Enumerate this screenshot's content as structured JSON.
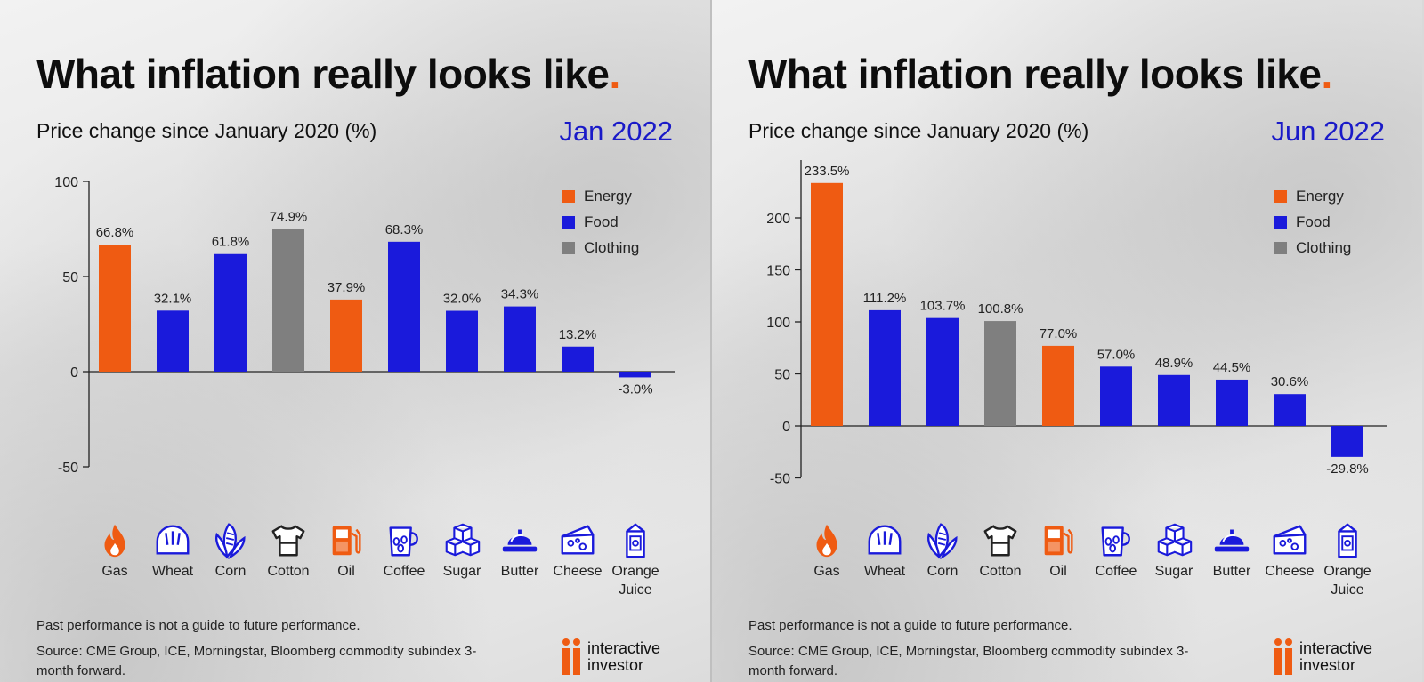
{
  "colors": {
    "energy": "#ef5b12",
    "food": "#1a1adb",
    "clothing": "#7f7f7f",
    "accent": "#ef5b12",
    "period": "#1a1ac8"
  },
  "panels": [
    {
      "title": "What inflation really looks like",
      "title_dot": ".",
      "subtitle": "Price change since January 2020 (%)",
      "period": "Jan 2022",
      "legend": [
        {
          "label": "Energy",
          "color": "#ef5b12"
        },
        {
          "label": "Food",
          "color": "#1a1adb"
        },
        {
          "label": "Clothing",
          "color": "#7f7f7f"
        }
      ],
      "commodities": [
        {
          "label": "Gas",
          "icon": "flame-icon"
        },
        {
          "label": "Wheat",
          "icon": "bread-icon"
        },
        {
          "label": "Corn",
          "icon": "corn-icon"
        },
        {
          "label": "Cotton",
          "icon": "tshirt-icon"
        },
        {
          "label": "Oil",
          "icon": "fuel-pump-icon"
        },
        {
          "label": "Coffee",
          "icon": "coffee-cup-icon"
        },
        {
          "label": "Sugar",
          "icon": "sugar-cubes-icon"
        },
        {
          "label": "Butter",
          "icon": "butter-dish-icon"
        },
        {
          "label": "Cheese",
          "icon": "cheese-icon"
        },
        {
          "label": "Orange Juice",
          "icon": "juice-carton-icon"
        }
      ],
      "disclaimer": "Past performance is not a guide to future performance.",
      "source": "Source: CME Group, ICE, Morningstar, Bloomberg commodity subindex 3-month forward.",
      "brand": {
        "line1": "interactive",
        "line2": "investor"
      }
    },
    {
      "title": "What inflation really looks like",
      "title_dot": ".",
      "subtitle": "Price change since January 2020 (%)",
      "period": "Jun 2022",
      "legend": [
        {
          "label": "Energy",
          "color": "#ef5b12"
        },
        {
          "label": "Food",
          "color": "#1a1adb"
        },
        {
          "label": "Clothing",
          "color": "#7f7f7f"
        }
      ],
      "commodities": [
        {
          "label": "Gas",
          "icon": "flame-icon"
        },
        {
          "label": "Wheat",
          "icon": "bread-icon"
        },
        {
          "label": "Corn",
          "icon": "corn-icon"
        },
        {
          "label": "Cotton",
          "icon": "tshirt-icon"
        },
        {
          "label": "Oil",
          "icon": "fuel-pump-icon"
        },
        {
          "label": "Coffee",
          "icon": "coffee-cup-icon"
        },
        {
          "label": "Sugar",
          "icon": "sugar-cubes-icon"
        },
        {
          "label": "Butter",
          "icon": "butter-dish-icon"
        },
        {
          "label": "Cheese",
          "icon": "cheese-icon"
        },
        {
          "label": "Orange Juice",
          "icon": "juice-carton-icon"
        }
      ],
      "disclaimer": "Past performance is not a guide to future performance.",
      "source": "Source: CME Group, ICE, Morningstar, Bloomberg commodity subindex 3-month forward.",
      "brand": {
        "line1": "interactive",
        "line2": "investor"
      }
    }
  ],
  "chart_data": [
    {
      "type": "bar",
      "title": "What inflation really looks like.",
      "subtitle": "Price change since January 2020 (%)",
      "period": "Jan 2022",
      "categories": [
        "Gas",
        "Wheat",
        "Corn",
        "Cotton",
        "Oil",
        "Coffee",
        "Sugar",
        "Butter",
        "Cheese",
        "Orange Juice"
      ],
      "values": [
        66.8,
        32.1,
        61.8,
        74.9,
        37.9,
        68.3,
        32.0,
        34.3,
        13.2,
        -3.0
      ],
      "data_labels": [
        "66.8%",
        "32.1%",
        "61.8%",
        "74.9%",
        "37.9%",
        "68.3%",
        "32.0%",
        "34.3%",
        "13.2%",
        "-3.0%"
      ],
      "groups": [
        "Energy",
        "Food",
        "Food",
        "Clothing",
        "Energy",
        "Food",
        "Food",
        "Food",
        "Food",
        "Food"
      ],
      "yticks": [
        100,
        50,
        0,
        -50
      ],
      "ylim": [
        -50,
        100
      ],
      "legend": [
        "Energy",
        "Food",
        "Clothing"
      ],
      "legend_position": "top-right",
      "grid": false,
      "xlabel": "",
      "ylabel": ""
    },
    {
      "type": "bar",
      "title": "What inflation really looks like.",
      "subtitle": "Price change since January 2020 (%)",
      "period": "Jun 2022",
      "categories": [
        "Gas",
        "Wheat",
        "Corn",
        "Cotton",
        "Oil",
        "Coffee",
        "Sugar",
        "Butter",
        "Cheese",
        "Orange Juice"
      ],
      "values": [
        233.5,
        111.2,
        103.7,
        100.8,
        77.0,
        57.0,
        48.9,
        44.5,
        30.6,
        -29.8
      ],
      "data_labels": [
        "233.5%",
        "111.2%",
        "103.7%",
        "100.8%",
        "77.0%",
        "57.0%",
        "48.9%",
        "44.5%",
        "30.6%",
        "-29.8%"
      ],
      "groups": [
        "Energy",
        "Food",
        "Food",
        "Clothing",
        "Energy",
        "Food",
        "Food",
        "Food",
        "Food",
        "Food"
      ],
      "yticks": [
        200,
        150,
        100,
        50,
        0,
        -50
      ],
      "ylim": [
        -50,
        233.5
      ],
      "legend": [
        "Energy",
        "Food",
        "Clothing"
      ],
      "legend_position": "top-right",
      "grid": false,
      "xlabel": "",
      "ylabel": ""
    }
  ]
}
